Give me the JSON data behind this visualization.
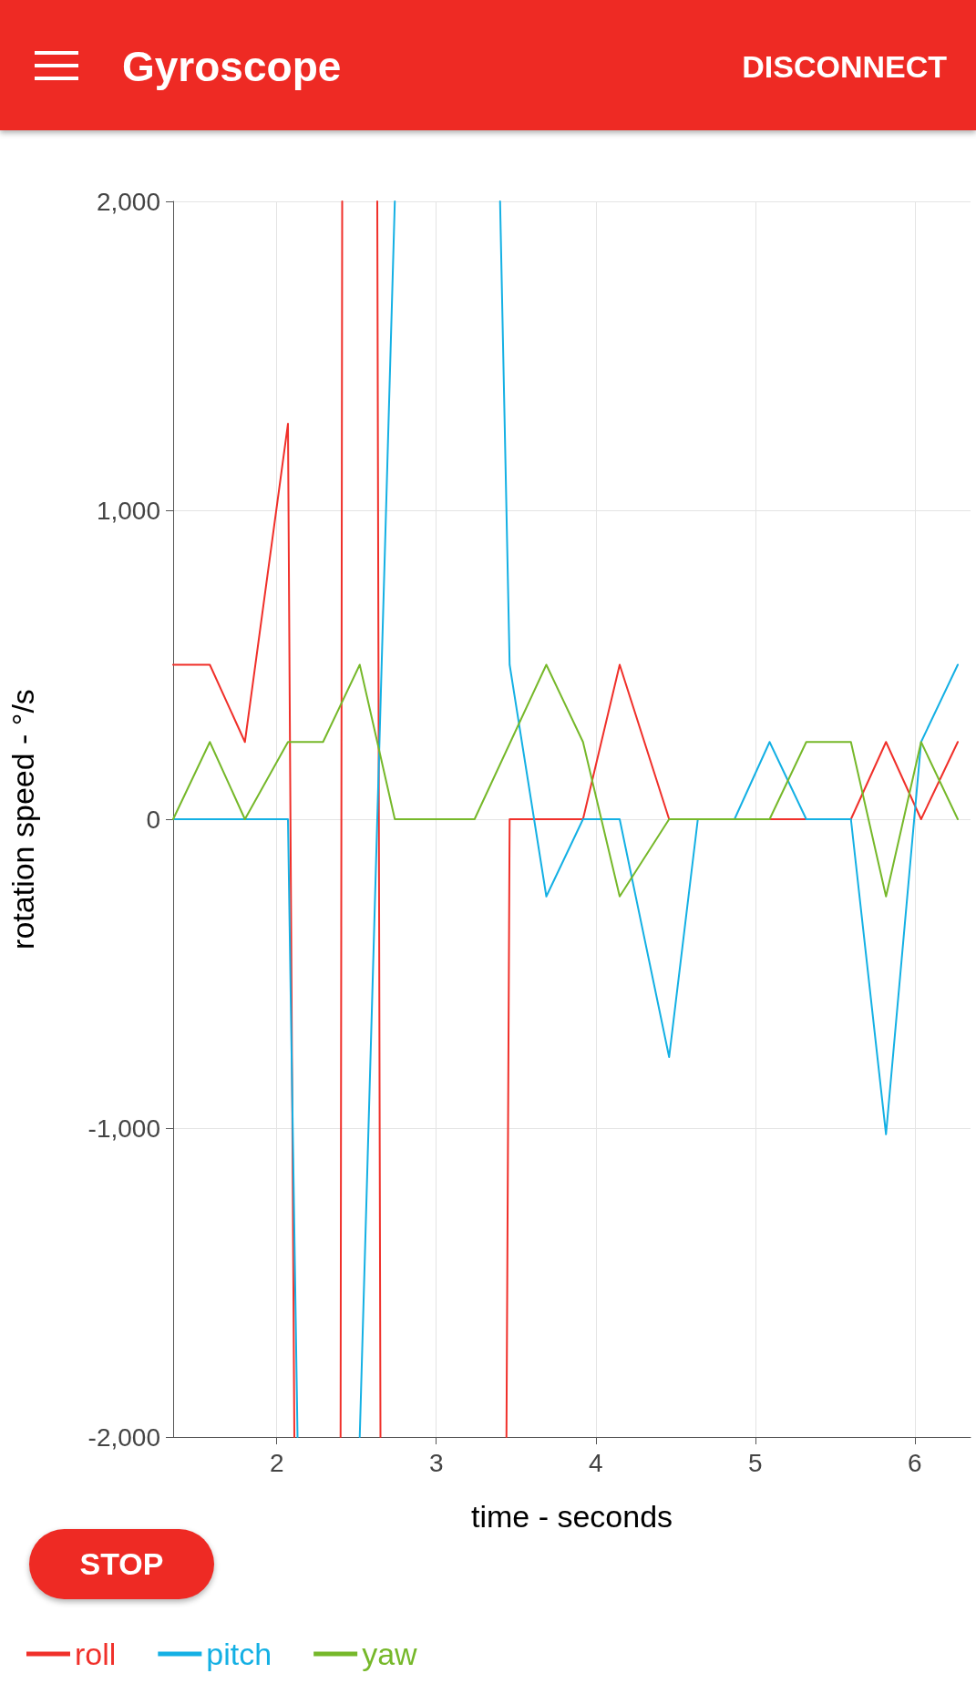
{
  "chart_data": {
    "type": "line",
    "title": "Gyroscope",
    "xlabel": "time - seconds",
    "ylabel": "rotation speed - °/s",
    "annotations": [
      "DISCONNECT",
      "STOP"
    ],
    "xlim": [
      1.35,
      6.35
    ],
    "xticks": [
      2,
      3,
      4,
      5,
      6
    ],
    "ylim": [
      -2000,
      2000
    ],
    "yticks": [
      {
        "value": -2000,
        "label": "-2,000"
      },
      {
        "value": -1000,
        "label": "-1,000"
      },
      0,
      {
        "value": 1000,
        "label": "1,000"
      },
      {
        "value": 2000,
        "label": "2,000"
      }
    ],
    "grid": true,
    "legend": "bottom left",
    "series": [
      {
        "name": "roll",
        "color": "#f0302a",
        "x": [
          1.35,
          1.58,
          1.8,
          2.07,
          2.11,
          2.25,
          2.4,
          2.41,
          2.52,
          2.63,
          2.65,
          3.0,
          3.44,
          3.46,
          3.92,
          4.15,
          4.46,
          5.6,
          5.82,
          6.04,
          6.27
        ],
        "values": [
          500,
          500,
          250,
          1280,
          -2000,
          null,
          -2000,
          2000,
          null,
          2000,
          -2000,
          null,
          -2000,
          0,
          0,
          500,
          0,
          0,
          250,
          0,
          250
        ]
      },
      {
        "name": "pitch",
        "color": "#14b0e4",
        "x": [
          1.35,
          2.07,
          2.13,
          2.3,
          2.52,
          2.74,
          3.1,
          3.4,
          3.46,
          3.69,
          3.92,
          4.15,
          4.46,
          4.64,
          4.87,
          5.09,
          5.32,
          5.6,
          5.82,
          6.04,
          6.27
        ],
        "values": [
          0,
          0,
          -2000,
          null,
          -2000,
          2000,
          null,
          2000,
          500,
          -250,
          0,
          0,
          -770,
          0,
          0,
          250,
          0,
          0,
          -1020,
          250,
          500
        ]
      },
      {
        "name": "yaw",
        "color": "#76b82a",
        "x": [
          1.35,
          1.58,
          1.8,
          2.07,
          2.29,
          2.52,
          2.74,
          3.24,
          3.69,
          3.92,
          4.15,
          4.46,
          5.09,
          5.32,
          5.6,
          5.82,
          6.04,
          6.27
        ],
        "values": [
          0,
          250,
          0,
          250,
          250,
          500,
          0,
          0,
          500,
          250,
          -250,
          0,
          0,
          250,
          250,
          -250,
          250,
          0
        ]
      }
    ]
  }
}
